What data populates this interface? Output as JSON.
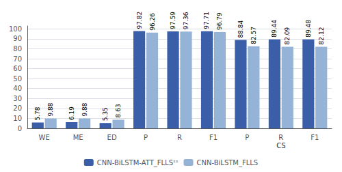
{
  "chart_data": {
    "type": "bar",
    "categories": [
      "WE",
      "ME",
      "ED",
      "P",
      "R",
      "F1",
      "P",
      "R",
      "F1"
    ],
    "series": [
      {
        "name": "CNN-BiLSTM-ATT_FLLSˢˢ",
        "color": "#3A5FA8",
        "values": [
          5.78,
          6.19,
          5.35,
          97.82,
          97.59,
          97.71,
          88.84,
          89.44,
          89.48
        ]
      },
      {
        "name": "CNN-BiLSTM_FLLS",
        "color": "#95B3D7",
        "values": [
          9.88,
          9.88,
          8.63,
          96.26,
          97.36,
          96.79,
          82.57,
          82.09,
          82.12
        ]
      }
    ],
    "ylim": [
      0,
      103
    ],
    "yticks": [
      0,
      10,
      20,
      30,
      40,
      50,
      60,
      70,
      80,
      90,
      100
    ],
    "grid": true,
    "legend": "bottom",
    "data_labels": true,
    "annotations": [
      {
        "text": "CS",
        "from": 6,
        "to": 8
      }
    ]
  }
}
